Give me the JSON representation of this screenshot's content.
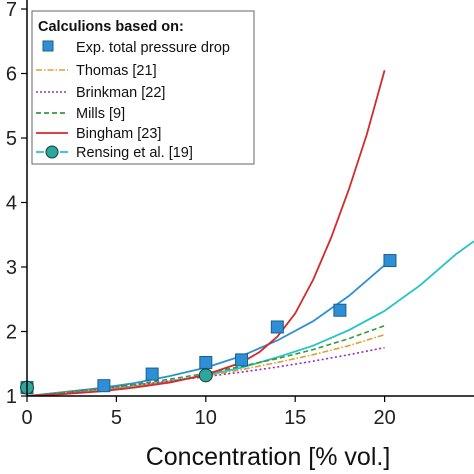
{
  "chart_data": {
    "type": "line",
    "xlabel": "Concentration [% vol.]",
    "ylabel": "",
    "xlim": [
      0,
      25
    ],
    "ylim": [
      1,
      7
    ],
    "x_ticks": [
      {
        "value": 0,
        "label": "0"
      },
      {
        "value": 5,
        "label": "5"
      },
      {
        "value": 10,
        "label": "10"
      },
      {
        "value": 15,
        "label": "15"
      },
      {
        "value": 20,
        "label": "20"
      }
    ],
    "y_ticks": [
      {
        "value": 1,
        "label": "1"
      },
      {
        "value": 2,
        "label": "2"
      },
      {
        "value": 3,
        "label": "3"
      },
      {
        "value": 4,
        "label": "4"
      },
      {
        "value": 5,
        "label": "5"
      },
      {
        "value": 6,
        "label": "6"
      },
      {
        "value": 7,
        "label": "7"
      }
    ],
    "legend": {
      "title": "Calculions based on:",
      "position": "top-left"
    },
    "series": [
      {
        "name": "Exp. total pressure drop",
        "kind": "markers",
        "marker": "square",
        "color": "#2e8fd6",
        "x": [
          0,
          4.3,
          7,
          10,
          12,
          14,
          17.5,
          20.3
        ],
        "y": [
          1.13,
          1.16,
          1.34,
          1.52,
          1.56,
          2.07,
          2.33,
          3.1
        ]
      },
      {
        "name": "Thomas [21]",
        "kind": "line",
        "dash": "dashdot",
        "color": "#e0a030",
        "x": [
          0,
          2,
          4,
          6,
          8,
          10,
          12,
          14,
          16,
          18,
          20
        ],
        "y": [
          1.0,
          1.05,
          1.1,
          1.16,
          1.23,
          1.31,
          1.41,
          1.52,
          1.64,
          1.78,
          1.95
        ]
      },
      {
        "name": "Brinkman [22]",
        "kind": "line",
        "dash": "dotted",
        "color": "#9b2fc1",
        "x": [
          0,
          2,
          4,
          6,
          8,
          10,
          12,
          14,
          16,
          18,
          20
        ],
        "y": [
          1.0,
          1.05,
          1.11,
          1.17,
          1.23,
          1.3,
          1.37,
          1.45,
          1.54,
          1.64,
          1.75
        ]
      },
      {
        "name": "Mills [9]",
        "kind": "line",
        "dash": "dashed",
        "color": "#3a9a3a",
        "x": [
          0,
          2,
          4,
          6,
          8,
          10,
          12,
          14,
          16,
          18,
          20
        ],
        "y": [
          1.0,
          1.05,
          1.11,
          1.18,
          1.26,
          1.35,
          1.46,
          1.58,
          1.72,
          1.89,
          2.09
        ]
      },
      {
        "name": "Bingham [23]",
        "kind": "line",
        "dash": "solid",
        "color": "#d42a2a",
        "x": [
          0,
          2,
          4,
          6,
          8,
          10,
          12,
          13,
          14,
          15,
          16,
          17,
          18,
          19,
          20
        ],
        "y": [
          1.0,
          1.03,
          1.07,
          1.13,
          1.21,
          1.33,
          1.52,
          1.68,
          1.92,
          2.28,
          2.8,
          3.45,
          4.2,
          5.05,
          6.05
        ]
      },
      {
        "name": "Rensing et al. [19]",
        "kind": "line+markers",
        "dash": "dashed",
        "color": "#22c4c8",
        "marker": "circle",
        "marker_fill": "#2ba89a",
        "marker_x": [
          0,
          10
        ],
        "marker_y": [
          1.13,
          1.32
        ]
      }
    ],
    "fit_curves": [
      {
        "color": "#2e8fd6",
        "x": [
          0,
          2,
          4,
          6,
          8,
          10,
          12,
          14,
          16,
          18,
          20.3
        ],
        "y": [
          1.0,
          1.06,
          1.12,
          1.2,
          1.31,
          1.44,
          1.62,
          1.86,
          2.16,
          2.55,
          3.1
        ]
      },
      {
        "color": "#22c4c8",
        "x": [
          0,
          2,
          4,
          6,
          8,
          10,
          12,
          14,
          16,
          18,
          20,
          22,
          24,
          25
        ],
        "y": [
          1.0,
          1.04,
          1.09,
          1.15,
          1.23,
          1.32,
          1.44,
          1.6,
          1.78,
          2.02,
          2.32,
          2.72,
          3.2,
          3.4
        ]
      }
    ]
  }
}
